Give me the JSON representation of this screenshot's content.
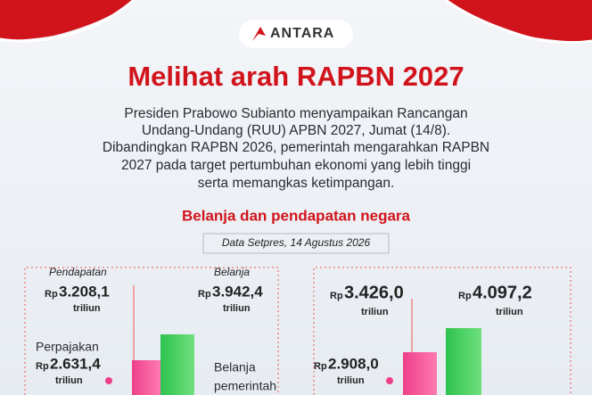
{
  "header": {
    "logo": "ANTARA",
    "title": "Melihat arah RAPBN 2027",
    "body": [
      "Presiden Prabowo Subianto menyampaikan Rancangan",
      "Undang-Undang (RUU) APBN 2027, Jumat (14/8).",
      "Dibandingkan RAPBN 2026, pemerintah mengarahkan RAPBN",
      "2027 pada target pertumbuhan ekonomi yang lebih tinggi",
      "serta memangkas ketimpangan."
    ]
  },
  "section": {
    "title": "Belanja dan pendapatan negara",
    "source": "Data Setpres, 14 Agustus 2026"
  },
  "left": {
    "pendapatan": {
      "label": "Pendapatan",
      "currency": "Rp",
      "amount": "3.208,1",
      "unit": "triliun"
    },
    "belanja": {
      "label": "Belanja",
      "currency": "Rp",
      "amount": "3.942,4",
      "unit": "triliun"
    },
    "perpajakan": {
      "label": "Perpajakan",
      "currency": "Rp",
      "amount": "2.631,4",
      "unit": "triliun"
    },
    "belanja_pemerintah": [
      "Belanja",
      "pemerintah"
    ]
  },
  "right": {
    "pendapatan": {
      "currency": "Rp",
      "amount": "3.426,0",
      "unit": "triliun"
    },
    "belanja": {
      "currency": "Rp",
      "amount": "4.097,2",
      "unit": "triliun"
    },
    "perpajakan": {
      "currency": "Rp",
      "amount": "2.908,0",
      "unit": "triliun"
    }
  }
}
